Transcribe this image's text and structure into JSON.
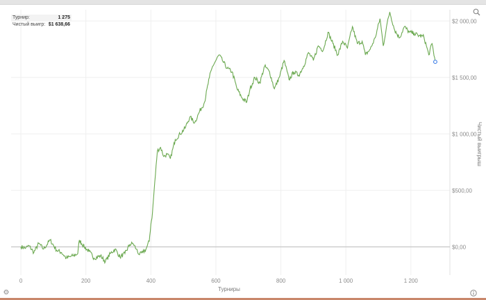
{
  "info": {
    "rows": [
      {
        "label": "Турнир:",
        "value": "1 275"
      },
      {
        "label": "Чистый выигр:",
        "value": "$1 638,66"
      }
    ]
  },
  "icons": {
    "zoom": "magnifier-icon",
    "settings": "gear-icon",
    "info": "info-icon"
  },
  "colors": {
    "line": "#6aa84f",
    "marker": "#4a86e8",
    "baseline": "#bbbbbb",
    "grid": "#efefef"
  },
  "chart_data": {
    "type": "line",
    "xlabel": "Турниры",
    "ylabel": "Чистый выигрыш",
    "xlim": [
      -30,
      1320
    ],
    "ylim": [
      -250,
      2100
    ],
    "x_ticks": [
      0,
      200,
      400,
      600,
      800,
      1000,
      1200
    ],
    "x_tick_labels": [
      "0",
      "200",
      "400",
      "600",
      "800",
      "1 000",
      "1 200"
    ],
    "y_ticks": [
      0,
      500,
      1000,
      1500,
      2000
    ],
    "y_tick_labels": [
      "$0,00",
      "$500,00",
      "$1 000,00",
      "$1 500,00",
      "$2 000,00"
    ],
    "grid": true,
    "series": [
      {
        "x": [
          0,
          15,
          25,
          40,
          55,
          70,
          90,
          110,
          125,
          140,
          160,
          175,
          180,
          195,
          210,
          225,
          245,
          260,
          275,
          290,
          305,
          320,
          335,
          345,
          355,
          365,
          375,
          385,
          395,
          400,
          405,
          410,
          420,
          430,
          440,
          450,
          460,
          475,
          490,
          505,
          520,
          535,
          550,
          565,
          580,
          590,
          600,
          610,
          620,
          635,
          650,
          665,
          680,
          695,
          705,
          720,
          735,
          750,
          765,
          780,
          795,
          810,
          825,
          840,
          855,
          870,
          885,
          900,
          915,
          930,
          945,
          960,
          975,
          990,
          1005,
          1020,
          1035,
          1050,
          1060,
          1075,
          1090,
          1105,
          1115,
          1125,
          1135,
          1150,
          1165,
          1180,
          1195,
          1210,
          1225,
          1240,
          1255,
          1265,
          1275
        ],
        "y": [
          0,
          -10,
          10,
          -50,
          30,
          -20,
          60,
          -30,
          -50,
          -100,
          -80,
          -60,
          60,
          0,
          -40,
          -100,
          -80,
          -130,
          -60,
          -20,
          -90,
          -60,
          20,
          30,
          -20,
          -70,
          -50,
          -20,
          50,
          200,
          300,
          500,
          850,
          880,
          800,
          820,
          780,
          950,
          1000,
          1050,
          1150,
          1100,
          1200,
          1280,
          1500,
          1600,
          1650,
          1700,
          1650,
          1580,
          1550,
          1400,
          1320,
          1280,
          1400,
          1500,
          1450,
          1600,
          1550,
          1400,
          1500,
          1650,
          1480,
          1550,
          1520,
          1600,
          1720,
          1650,
          1780,
          1740,
          1900,
          1800,
          1700,
          1820,
          1760,
          1950,
          1800,
          1820,
          1700,
          1750,
          1850,
          2020,
          1780,
          1950,
          2080,
          1920,
          1850,
          1950,
          1900,
          1890,
          1870,
          1860,
          1700,
          1800,
          1638.66
        ],
        "last_point": [
          1275,
          1638.66
        ]
      }
    ]
  }
}
